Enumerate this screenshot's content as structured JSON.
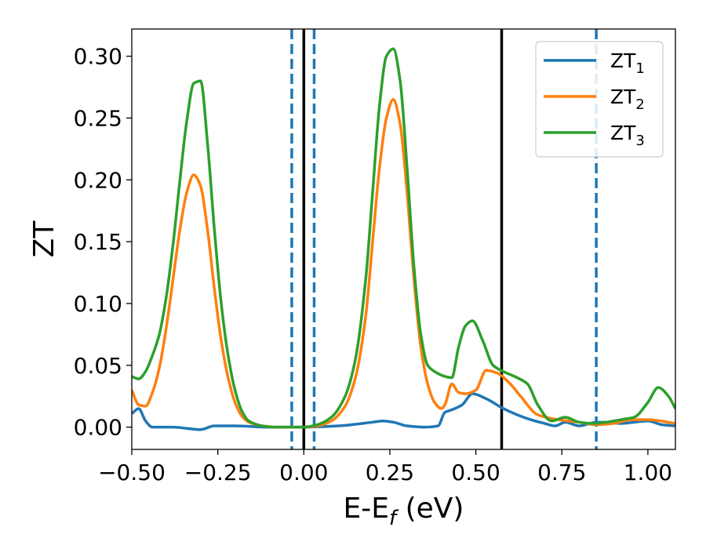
{
  "chart_data": {
    "type": "line",
    "xlabel": "E-E_f (eV)",
    "ylabel": "ZT",
    "xlim": [
      -0.5,
      1.08
    ],
    "ylim": [
      -0.018,
      0.322
    ],
    "xticks": [
      -0.5,
      -0.25,
      0.0,
      0.25,
      0.5,
      0.75,
      1.0
    ],
    "xtick_labels": [
      "−0.50",
      "−0.25",
      "0.00",
      "0.25",
      "0.50",
      "0.75",
      "1.00"
    ],
    "yticks": [
      0.0,
      0.05,
      0.1,
      0.15,
      0.2,
      0.25,
      0.3
    ],
    "ytick_labels": [
      "0.00",
      "0.05",
      "0.10",
      "0.15",
      "0.20",
      "0.25",
      "0.30"
    ],
    "grid": false,
    "legend_position": "top-right",
    "solid_vlines_x": [
      0.0,
      0.575
    ],
    "dashed_vlines_x": [
      -0.035,
      0.03,
      0.85
    ],
    "series": [
      {
        "name": "ZT_1",
        "base": "ZT",
        "sub": "1",
        "color": "#1f77b4",
        "x": [
          -0.5,
          -0.48,
          -0.46,
          -0.44,
          -0.42,
          -0.38,
          -0.34,
          -0.3,
          -0.26,
          -0.2,
          -0.1,
          0.0,
          0.1,
          0.2,
          0.23,
          0.26,
          0.3,
          0.35,
          0.39,
          0.41,
          0.43,
          0.46,
          0.49,
          0.53,
          0.58,
          0.62,
          0.66,
          0.7,
          0.73,
          0.76,
          0.8,
          0.85,
          0.88,
          0.92,
          0.96,
          1.0,
          1.04,
          1.08
        ],
        "y": [
          0.011,
          0.015,
          0.005,
          0.0,
          0.0,
          0.0,
          -0.001,
          -0.002,
          0.001,
          0.001,
          0.0,
          0.0,
          0.001,
          0.004,
          0.005,
          0.004,
          0.001,
          0.0,
          0.001,
          0.012,
          0.014,
          0.018,
          0.027,
          0.023,
          0.015,
          0.01,
          0.006,
          0.003,
          0.001,
          0.004,
          0.001,
          0.004,
          0.004,
          0.003,
          0.004,
          0.005,
          0.002,
          0.001
        ]
      },
      {
        "name": "ZT_2",
        "base": "ZT",
        "sub": "2",
        "color": "#ff7f0e",
        "x": [
          -0.5,
          -0.48,
          -0.46,
          -0.44,
          -0.42,
          -0.4,
          -0.38,
          -0.36,
          -0.34,
          -0.32,
          -0.3,
          -0.28,
          -0.26,
          -0.24,
          -0.22,
          -0.2,
          -0.18,
          -0.16,
          -0.12,
          -0.08,
          -0.04,
          0.0,
          0.04,
          0.08,
          0.12,
          0.15,
          0.18,
          0.2,
          0.22,
          0.24,
          0.26,
          0.28,
          0.3,
          0.32,
          0.34,
          0.36,
          0.38,
          0.4,
          0.41,
          0.43,
          0.45,
          0.47,
          0.5,
          0.53,
          0.56,
          0.6,
          0.63,
          0.68,
          0.74,
          0.8,
          0.85,
          0.9,
          0.95,
          1.0,
          1.08
        ],
        "y": [
          0.03,
          0.018,
          0.017,
          0.028,
          0.048,
          0.08,
          0.12,
          0.16,
          0.19,
          0.204,
          0.195,
          0.16,
          0.112,
          0.07,
          0.04,
          0.02,
          0.009,
          0.004,
          0.001,
          0.0,
          0.0,
          0.0,
          0.001,
          0.005,
          0.017,
          0.04,
          0.09,
          0.15,
          0.21,
          0.25,
          0.265,
          0.245,
          0.19,
          0.12,
          0.065,
          0.035,
          0.02,
          0.015,
          0.018,
          0.035,
          0.028,
          0.027,
          0.03,
          0.046,
          0.044,
          0.035,
          0.025,
          0.01,
          0.006,
          0.004,
          0.002,
          0.003,
          0.006,
          0.006,
          0.003
        ]
      },
      {
        "name": "ZT_3",
        "base": "ZT",
        "sub": "3",
        "color": "#2ca02c",
        "x": [
          -0.5,
          -0.48,
          -0.46,
          -0.44,
          -0.42,
          -0.4,
          -0.38,
          -0.36,
          -0.34,
          -0.32,
          -0.3,
          -0.28,
          -0.26,
          -0.24,
          -0.22,
          -0.2,
          -0.18,
          -0.16,
          -0.12,
          -0.08,
          -0.04,
          0.0,
          0.04,
          0.08,
          0.12,
          0.15,
          0.18,
          0.2,
          0.22,
          0.24,
          0.26,
          0.28,
          0.3,
          0.32,
          0.34,
          0.36,
          0.38,
          0.4,
          0.41,
          0.43,
          0.45,
          0.47,
          0.49,
          0.52,
          0.55,
          0.58,
          0.62,
          0.65,
          0.68,
          0.72,
          0.76,
          0.8,
          0.84,
          0.88,
          0.92,
          0.96,
          1.0,
          1.03,
          1.06,
          1.08
        ],
        "y": [
          0.041,
          0.039,
          0.045,
          0.058,
          0.075,
          0.105,
          0.148,
          0.2,
          0.248,
          0.278,
          0.28,
          0.23,
          0.16,
          0.1,
          0.058,
          0.03,
          0.013,
          0.005,
          0.001,
          0.0,
          0.0,
          0.0,
          0.002,
          0.008,
          0.025,
          0.055,
          0.12,
          0.19,
          0.26,
          0.3,
          0.306,
          0.28,
          0.21,
          0.13,
          0.075,
          0.05,
          0.045,
          0.042,
          0.041,
          0.04,
          0.065,
          0.082,
          0.086,
          0.07,
          0.05,
          0.045,
          0.04,
          0.035,
          0.018,
          0.005,
          0.008,
          0.004,
          0.003,
          0.004,
          0.006,
          0.008,
          0.02,
          0.032,
          0.025,
          0.015
        ]
      }
    ]
  }
}
